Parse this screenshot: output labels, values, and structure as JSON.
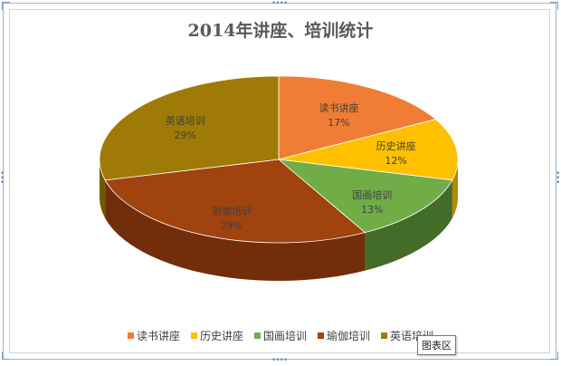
{
  "chart_data": {
    "type": "pie",
    "title": "2014年讲座、培训统计",
    "categories": [
      "读书讲座",
      "历史讲座",
      "国画培训",
      "瑜伽培训",
      "英语培训"
    ],
    "values": [
      17,
      12,
      13,
      29,
      29
    ],
    "value_labels": [
      "17%",
      "12%",
      "13%",
      "29%",
      "29%"
    ],
    "colors": [
      "#f07d33",
      "#ffc000",
      "#70ad47",
      "#a0430f",
      "#a07a06"
    ],
    "dark_colors": [
      "#8a3d10",
      "#8c6a00",
      "#2c4a1a",
      "#5a2208",
      "#5a4504"
    ],
    "legend_position": "bottom",
    "style": "3d-pie"
  },
  "tooltip": "图表区"
}
